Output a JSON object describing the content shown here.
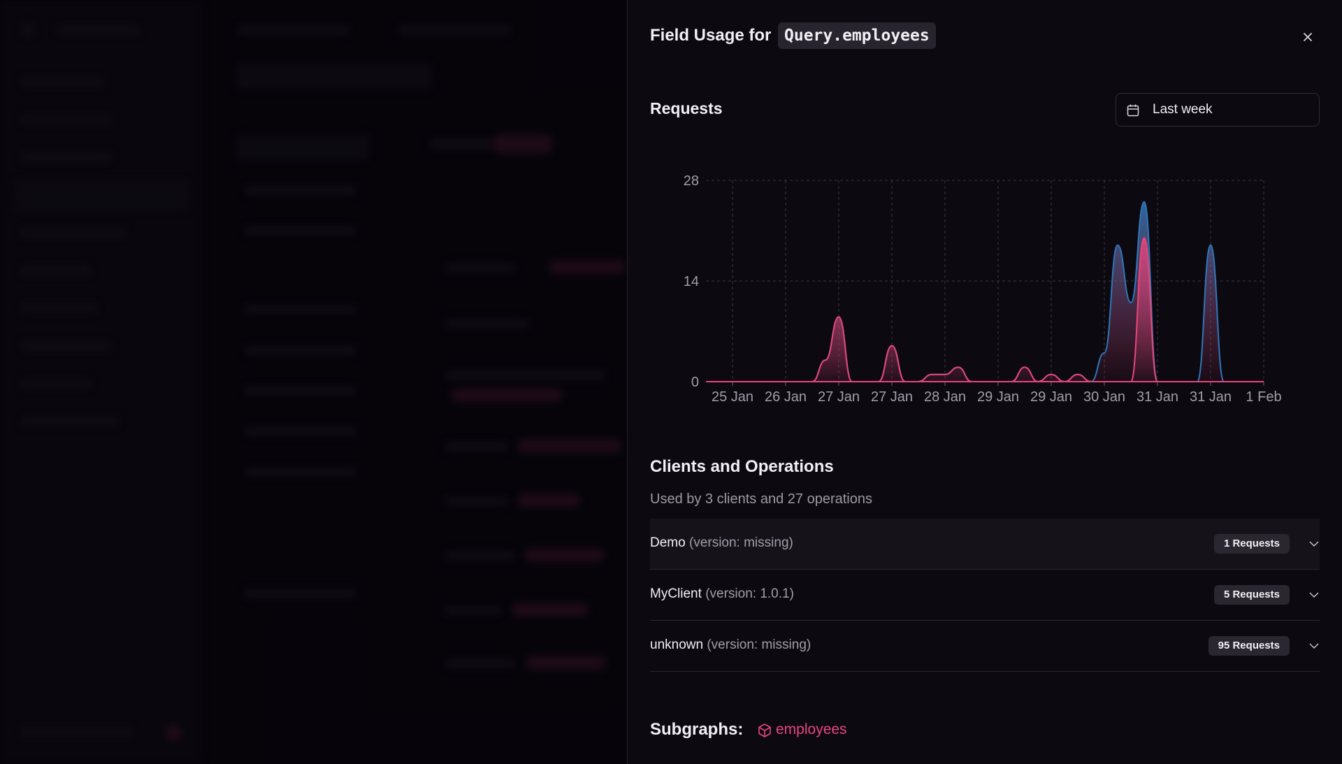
{
  "header": {
    "title": "Field Usage for",
    "code": "Query.employees"
  },
  "requests": {
    "title": "Requests",
    "range": "Last week"
  },
  "chart_data": {
    "type": "area",
    "x": [
      0,
      0.5,
      1,
      1.5,
      2,
      2.5,
      3,
      3.5,
      4,
      4.5,
      5,
      5.5,
      6,
      6.5,
      7,
      7.5,
      8,
      8.5,
      9,
      9.5,
      10,
      10.5,
      11,
      11.5,
      12,
      12.5,
      13,
      13.5,
      14,
      14.5,
      15,
      15.5,
      16,
      16.5,
      17,
      17.5,
      18,
      18.5,
      19,
      19.5,
      20,
      20.5,
      21
    ],
    "series": [
      {
        "color": "#2f77b8",
        "values": [
          0,
          0,
          0,
          0,
          0,
          0,
          0,
          0,
          0,
          3,
          9,
          0,
          0,
          0,
          5,
          0,
          0,
          1,
          1,
          2,
          0,
          0,
          0,
          0,
          2,
          0,
          1,
          0,
          1,
          0,
          4,
          19,
          11,
          25,
          0,
          0,
          0,
          0,
          19,
          0,
          0,
          0,
          0
        ]
      },
      {
        "color": "#e8467c",
        "values": [
          0,
          0,
          0,
          0,
          0,
          0,
          0,
          0,
          0,
          3,
          9,
          0,
          0,
          0,
          5,
          0,
          0,
          1,
          1,
          2,
          0,
          0,
          0,
          0,
          2,
          0,
          1,
          0,
          1,
          0,
          0,
          0,
          0,
          20,
          0,
          0,
          0,
          0,
          0,
          0,
          0,
          0,
          0
        ]
      }
    ],
    "xlim": [
      0,
      21
    ],
    "xticks": [
      {
        "value": 1,
        "label": "25 Jan"
      },
      {
        "value": 3,
        "label": "26 Jan"
      },
      {
        "value": 5,
        "label": "27 Jan"
      },
      {
        "value": 7,
        "label": "27 Jan"
      },
      {
        "value": 9,
        "label": "28 Jan"
      },
      {
        "value": 11,
        "label": "29 Jan"
      },
      {
        "value": 13,
        "label": "29 Jan"
      },
      {
        "value": 15,
        "label": "30 Jan"
      },
      {
        "value": 17,
        "label": "31 Jan"
      },
      {
        "value": 19,
        "label": "31 Jan"
      },
      {
        "value": 21,
        "label": "1 Feb"
      }
    ],
    "ylim": [
      0,
      28
    ],
    "yticks": [
      0,
      14,
      28
    ],
    "grid": true
  },
  "clients": {
    "title": "Clients and Operations",
    "subtitle": "Used by 3 clients and 27 operations",
    "rows": [
      {
        "name": "Demo",
        "version": "(version: missing)",
        "requests": "1 Requests"
      },
      {
        "name": "MyClient",
        "version": "(version: 1.0.1)",
        "requests": "5 Requests"
      },
      {
        "name": "unknown",
        "version": "(version: missing)",
        "requests": "95 Requests"
      }
    ]
  },
  "subgraphs": {
    "label": "Subgraphs:",
    "items": [
      "employees"
    ]
  }
}
